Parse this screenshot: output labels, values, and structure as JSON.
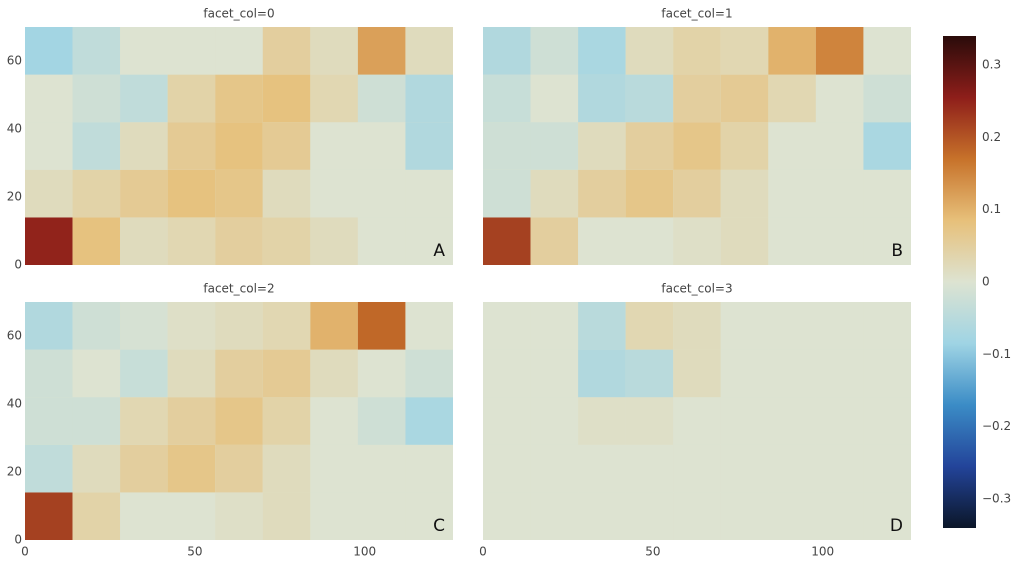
{
  "chart_data": {
    "type": "heatmap",
    "x": [
      7,
      21,
      35,
      49,
      63,
      77,
      91,
      105,
      119
    ],
    "y": [
      7,
      21,
      35,
      49,
      63
    ],
    "xlim": [
      0,
      126
    ],
    "ylim": [
      0,
      70
    ],
    "xticks": [
      0,
      50,
      100
    ],
    "yticks": [
      0,
      20,
      40,
      60
    ],
    "zlim": [
      -0.34,
      0.34
    ],
    "colorscale": [
      "#0b1628",
      "#23449a",
      "#3b8cc6",
      "#9fd4e4",
      "#dde3d1",
      "#e7c07a",
      "#c7722a",
      "#8e1e1a",
      "#2a0b0a"
    ],
    "colorbar_ticks": [
      {
        "value": 0.3,
        "label": "0.3"
      },
      {
        "value": 0.2,
        "label": "0.2"
      },
      {
        "value": 0.1,
        "label": "0.1"
      },
      0,
      {
        "value": -0.1,
        "label": "−0.1"
      },
      {
        "value": -0.2,
        "label": "−0.2"
      },
      {
        "value": -0.3,
        "label": "−0.3"
      }
    ],
    "facets": [
      {
        "title": "facet_col=0",
        "annotation": "A",
        "z": [
          [
            0.25,
            0.08,
            0.02,
            0.03,
            0.05,
            0.04,
            0.02,
            0,
            0
          ],
          [
            0.02,
            0.04,
            0.06,
            0.08,
            0.07,
            0.02,
            0,
            0,
            0
          ],
          [
            0,
            -0.04,
            0.02,
            0.06,
            0.08,
            0.06,
            0,
            0,
            -0.06
          ],
          [
            0,
            -0.02,
            -0.04,
            0.04,
            0.07,
            0.08,
            0.03,
            -0.02,
            -0.06
          ],
          [
            -0.08,
            -0.04,
            0,
            0,
            0,
            0.05,
            0.02,
            0.12,
            0.02
          ]
        ]
      },
      {
        "title": "facet_col=1",
        "annotation": "B",
        "z": [
          [
            0.22,
            0.05,
            0,
            0,
            0.01,
            0.02,
            0,
            0,
            0
          ],
          [
            -0.02,
            0.02,
            0.05,
            0.07,
            0.05,
            0.02,
            0,
            0,
            0
          ],
          [
            -0.02,
            -0.02,
            0.02,
            0.05,
            0.07,
            0.04,
            0,
            0,
            -0.07
          ],
          [
            -0.03,
            0,
            -0.06,
            -0.05,
            0.05,
            0.06,
            0.03,
            0,
            -0.02
          ],
          [
            -0.06,
            -0.02,
            -0.07,
            0.02,
            0.04,
            0.03,
            0.1,
            0.15,
            0
          ]
        ]
      },
      {
        "title": "facet_col=2",
        "annotation": "C",
        "z": [
          [
            0.22,
            0.04,
            0,
            0,
            0.01,
            0.02,
            0,
            0,
            0
          ],
          [
            -0.04,
            0.02,
            0.05,
            0.07,
            0.05,
            0.02,
            0,
            0,
            0
          ],
          [
            -0.02,
            -0.02,
            0.03,
            0.05,
            0.07,
            0.04,
            0,
            -0.02,
            -0.07
          ],
          [
            -0.02,
            0,
            -0.03,
            0.02,
            0.05,
            0.06,
            0.02,
            0,
            -0.02
          ],
          [
            -0.06,
            -0.02,
            -0.01,
            0.01,
            0.02,
            0.03,
            0.1,
            0.18,
            0
          ]
        ]
      },
      {
        "title": "facet_col=3",
        "annotation": "D",
        "z": [
          [
            0,
            0,
            0,
            0,
            0,
            0,
            0,
            0,
            0
          ],
          [
            0,
            0,
            0,
            0,
            0,
            0,
            0,
            0,
            0
          ],
          [
            0,
            0,
            0.01,
            0.01,
            0,
            0,
            0,
            0,
            0
          ],
          [
            0,
            0,
            -0.06,
            -0.05,
            0.02,
            0,
            0,
            0,
            0
          ],
          [
            0,
            0,
            -0.05,
            0.03,
            0.02,
            0,
            0,
            0,
            0
          ]
        ]
      }
    ]
  }
}
